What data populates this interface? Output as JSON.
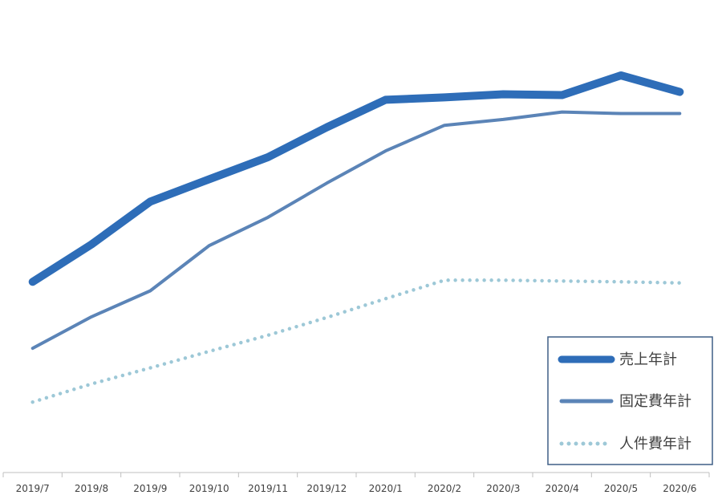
{
  "chart_data": {
    "type": "line",
    "title": "",
    "xlabel": "",
    "ylabel": "",
    "categories": [
      "2019/7",
      "2019/8",
      "2019/9",
      "2019/10",
      "2019/11",
      "2019/12",
      "2020/1",
      "2020/2",
      "2020/3",
      "2020/4",
      "2020/5",
      "2020/6"
    ],
    "ylim": [
      0,
      100
    ],
    "y_axis_visible": false,
    "grid": false,
    "legend_position": "bottom-right",
    "series": [
      {
        "name": "売上年計",
        "color": "#2E6DB8",
        "style": "solid-thick",
        "values": [
          47.5,
          57,
          67.9,
          73.6,
          79.2,
          86.8,
          93.8,
          94.4,
          95.2,
          95.0,
          100.0,
          95.8
        ]
      },
      {
        "name": "固定費年計",
        "color": "#5B84B7",
        "style": "solid",
        "values": [
          30.6,
          38.6,
          45.2,
          56.7,
          63.9,
          72.6,
          80.8,
          87.3,
          88.8,
          90.7,
          90.3,
          90.3
        ]
      },
      {
        "name": "人件費年計",
        "color": "#9DC8D7",
        "style": "dotted",
        "values": [
          16.9,
          21.5,
          25.6,
          29.8,
          33.9,
          38.4,
          43.2,
          47.9,
          47.9,
          47.7,
          47.5,
          47.2
        ]
      }
    ]
  }
}
